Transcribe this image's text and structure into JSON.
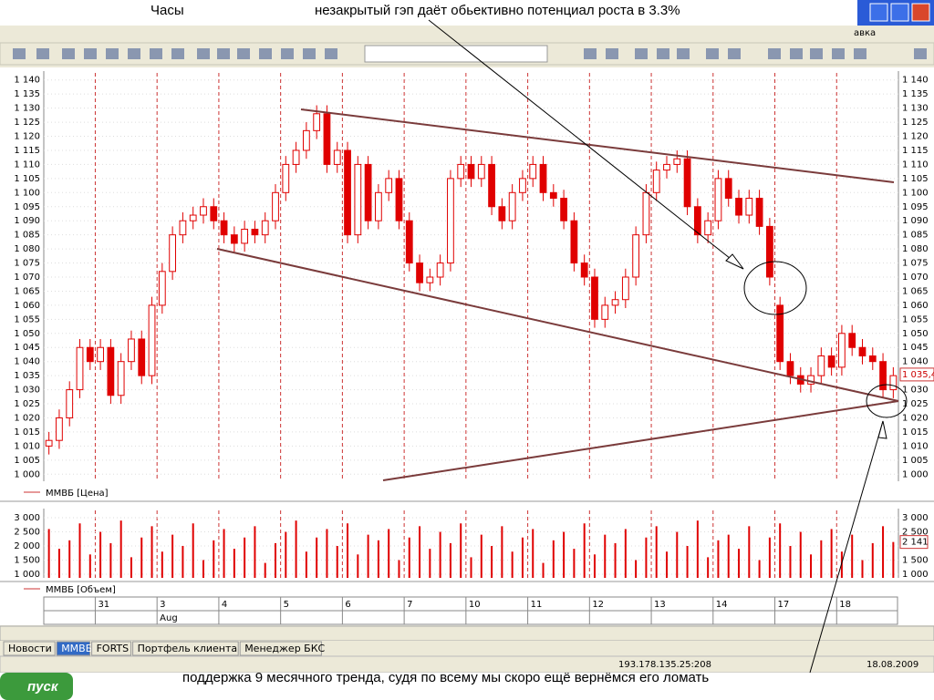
{
  "window": {
    "clock_note": "Часы",
    "top_note": "незакрытый гэп даёт обьективно потенциал роста в 3.3%",
    "menu_fragment": "авка",
    "bottom_note": "поддержка 9 месячного тренда, судя по всему мы скоро ещё вернёмся его ломать"
  },
  "price_chart": {
    "type": "candlestick",
    "legend": "ММВБ [Цена]",
    "ylim": [
      997.5,
      1142.5
    ],
    "yticks": [
      {
        "value": 1000,
        "label": "1 000"
      },
      {
        "value": 1005,
        "label": "1 005"
      },
      {
        "value": 1010,
        "label": "1 010"
      },
      {
        "value": 1015,
        "label": "1 015"
      },
      {
        "value": 1020,
        "label": "1 020"
      },
      {
        "value": 1025,
        "label": "1 025"
      },
      {
        "value": 1030,
        "label": "1 030"
      },
      {
        "value": 1035,
        "label": "1 035"
      },
      {
        "value": 1040,
        "label": "1 040"
      },
      {
        "value": 1045,
        "label": "1 045"
      },
      {
        "value": 1050,
        "label": "1 050"
      },
      {
        "value": 1055,
        "label": "1 055"
      },
      {
        "value": 1060,
        "label": "1 060"
      },
      {
        "value": 1065,
        "label": "1 065"
      },
      {
        "value": 1070,
        "label": "1 070"
      },
      {
        "value": 1075,
        "label": "1 075"
      },
      {
        "value": 1080,
        "label": "1 080"
      },
      {
        "value": 1085,
        "label": "1 085"
      },
      {
        "value": 1090,
        "label": "1 090"
      },
      {
        "value": 1095,
        "label": "1 095"
      },
      {
        "value": 1100,
        "label": "1 100"
      },
      {
        "value": 1105,
        "label": "1 105"
      },
      {
        "value": 1110,
        "label": "1 110"
      },
      {
        "value": 1115,
        "label": "1 115"
      },
      {
        "value": 1120,
        "label": "1 120"
      },
      {
        "value": 1125,
        "label": "1 125"
      },
      {
        "value": 1130,
        "label": "1 130"
      },
      {
        "value": 1135,
        "label": "1 135"
      },
      {
        "value": 1140,
        "label": "1 140"
      }
    ],
    "last": {
      "value": 1035.4,
      "label": "1 035,4"
    },
    "up_color": "#ffffff",
    "down_color": "#e00000",
    "open": [
      1010,
      1012,
      1020,
      1030,
      1045,
      1040,
      1045,
      1028,
      1040,
      1048,
      1035,
      1060,
      1072,
      1085,
      1090,
      1092,
      1095,
      1090,
      1085,
      1082,
      1087,
      1085,
      1090,
      1100,
      1110,
      1115,
      1122,
      1128,
      1110,
      1115,
      1085,
      1110,
      1090,
      1100,
      1105,
      1090,
      1075,
      1068,
      1070,
      1075,
      1105,
      1110,
      1105,
      1110,
      1095,
      1090,
      1100,
      1105,
      1110,
      1100,
      1098,
      1090,
      1075,
      1070,
      1055,
      1060,
      1062,
      1070,
      1085,
      1100,
      1108,
      1110,
      1112,
      1095,
      1085,
      1090,
      1105,
      1098,
      1092,
      1098,
      1088,
      1060,
      1040,
      1035,
      1032,
      1035,
      1042,
      1038,
      1050,
      1045,
      1042,
      1040,
      1030
    ],
    "high": [
      1015,
      1023,
      1033,
      1048,
      1048,
      1048,
      1048,
      1043,
      1051,
      1051,
      1063,
      1075,
      1088,
      1093,
      1095,
      1098,
      1098,
      1093,
      1088,
      1090,
      1090,
      1093,
      1103,
      1113,
      1118,
      1125,
      1131,
      1131,
      1118,
      1118,
      1113,
      1113,
      1103,
      1108,
      1108,
      1093,
      1078,
      1073,
      1078,
      1108,
      1113,
      1113,
      1113,
      1113,
      1098,
      1103,
      1108,
      1113,
      1113,
      1103,
      1101,
      1093,
      1078,
      1073,
      1063,
      1065,
      1073,
      1088,
      1103,
      1111,
      1113,
      1115,
      1115,
      1098,
      1093,
      1108,
      1108,
      1101,
      1101,
      1101,
      1091,
      1063,
      1043,
      1038,
      1038,
      1045,
      1045,
      1053,
      1053,
      1048,
      1045,
      1043,
      1038
    ],
    "low": [
      1007,
      1009,
      1017,
      1027,
      1037,
      1037,
      1025,
      1025,
      1037,
      1032,
      1032,
      1057,
      1069,
      1082,
      1087,
      1089,
      1087,
      1082,
      1079,
      1079,
      1082,
      1082,
      1087,
      1097,
      1107,
      1112,
      1119,
      1107,
      1107,
      1082,
      1082,
      1087,
      1087,
      1097,
      1087,
      1072,
      1065,
      1065,
      1067,
      1072,
      1102,
      1102,
      1102,
      1092,
      1087,
      1087,
      1097,
      1102,
      1097,
      1095,
      1087,
      1072,
      1067,
      1052,
      1052,
      1057,
      1059,
      1067,
      1082,
      1097,
      1105,
      1107,
      1092,
      1082,
      1082,
      1087,
      1095,
      1089,
      1089,
      1085,
      1067,
      1037,
      1032,
      1029,
      1029,
      1032,
      1035,
      1035,
      1042,
      1039,
      1037,
      1027,
      1027
    ],
    "close": [
      1012,
      1020,
      1030,
      1045,
      1040,
      1045,
      1028,
      1040,
      1048,
      1035,
      1060,
      1072,
      1085,
      1090,
      1092,
      1095,
      1090,
      1085,
      1082,
      1087,
      1085,
      1090,
      1100,
      1110,
      1115,
      1122,
      1128,
      1110,
      1115,
      1085,
      1110,
      1090,
      1100,
      1105,
      1090,
      1075,
      1068,
      1070,
      1075,
      1105,
      1110,
      1105,
      1110,
      1095,
      1090,
      1100,
      1105,
      1110,
      1100,
      1098,
      1090,
      1075,
      1070,
      1055,
      1060,
      1062,
      1070,
      1085,
      1100,
      1108,
      1110,
      1112,
      1095,
      1085,
      1090,
      1105,
      1098,
      1092,
      1098,
      1088,
      1070,
      1040,
      1035,
      1032,
      1035,
      1042,
      1038,
      1050,
      1045,
      1042,
      1040,
      1030,
      1035
    ]
  },
  "volume_chart": {
    "type": "bar",
    "legend": "ММВБ [Объем]",
    "color": "#e00000",
    "ylim": [
      870,
      3260
    ],
    "yticks": [
      {
        "value": 1000,
        "label": "1 000"
      },
      {
        "value": 1500,
        "label": "1 500"
      },
      {
        "value": 2000,
        "label": "2 000"
      },
      {
        "value": 2500,
        "label": "2 500"
      },
      {
        "value": 3000,
        "label": "3 000"
      }
    ],
    "last": {
      "value": 2141,
      "label": "2 141"
    },
    "values": [
      2600,
      1900,
      2200,
      2800,
      1700,
      2500,
      2100,
      2900,
      1600,
      2300,
      2700,
      1800,
      2400,
      2000,
      2800,
      1500,
      2200,
      2600,
      1900,
      2300,
      2700,
      1400,
      2100,
      2500,
      2900,
      1800,
      2300,
      2600,
      2000,
      2800,
      1700,
      2400,
      2200,
      2600,
      1500,
      2300,
      2700,
      1900,
      2500,
      2100,
      2800,
      1600,
      2400,
      2000,
      2700,
      1800,
      2300,
      2600,
      1400,
      2200,
      2500,
      1900,
      2800,
      1700,
      2400,
      2100,
      2600,
      1500,
      2300,
      2700,
      1800,
      2500,
      2000,
      2900,
      1600,
      2200,
      2400,
      1900,
      2700,
      1500,
      2300,
      2800,
      2000,
      2500,
      1700,
      2200,
      2600,
      1800,
      2400,
      1500,
      2100,
      2700,
      2141
    ]
  },
  "time_axis": {
    "days": [
      "31",
      "3",
      "4",
      "5",
      "6",
      "7",
      "10",
      "11",
      "12",
      "13",
      "14",
      "17",
      "18"
    ],
    "month": "Aug"
  },
  "tabs": [
    "Новости",
    "ММВБ",
    "FORTS",
    "Портфель клиента",
    "Менеджер БКС"
  ],
  "status": {
    "address": "193.178.135.25:208",
    "date": "18.08.2009"
  },
  "taskbar": {
    "start": "пуск"
  }
}
